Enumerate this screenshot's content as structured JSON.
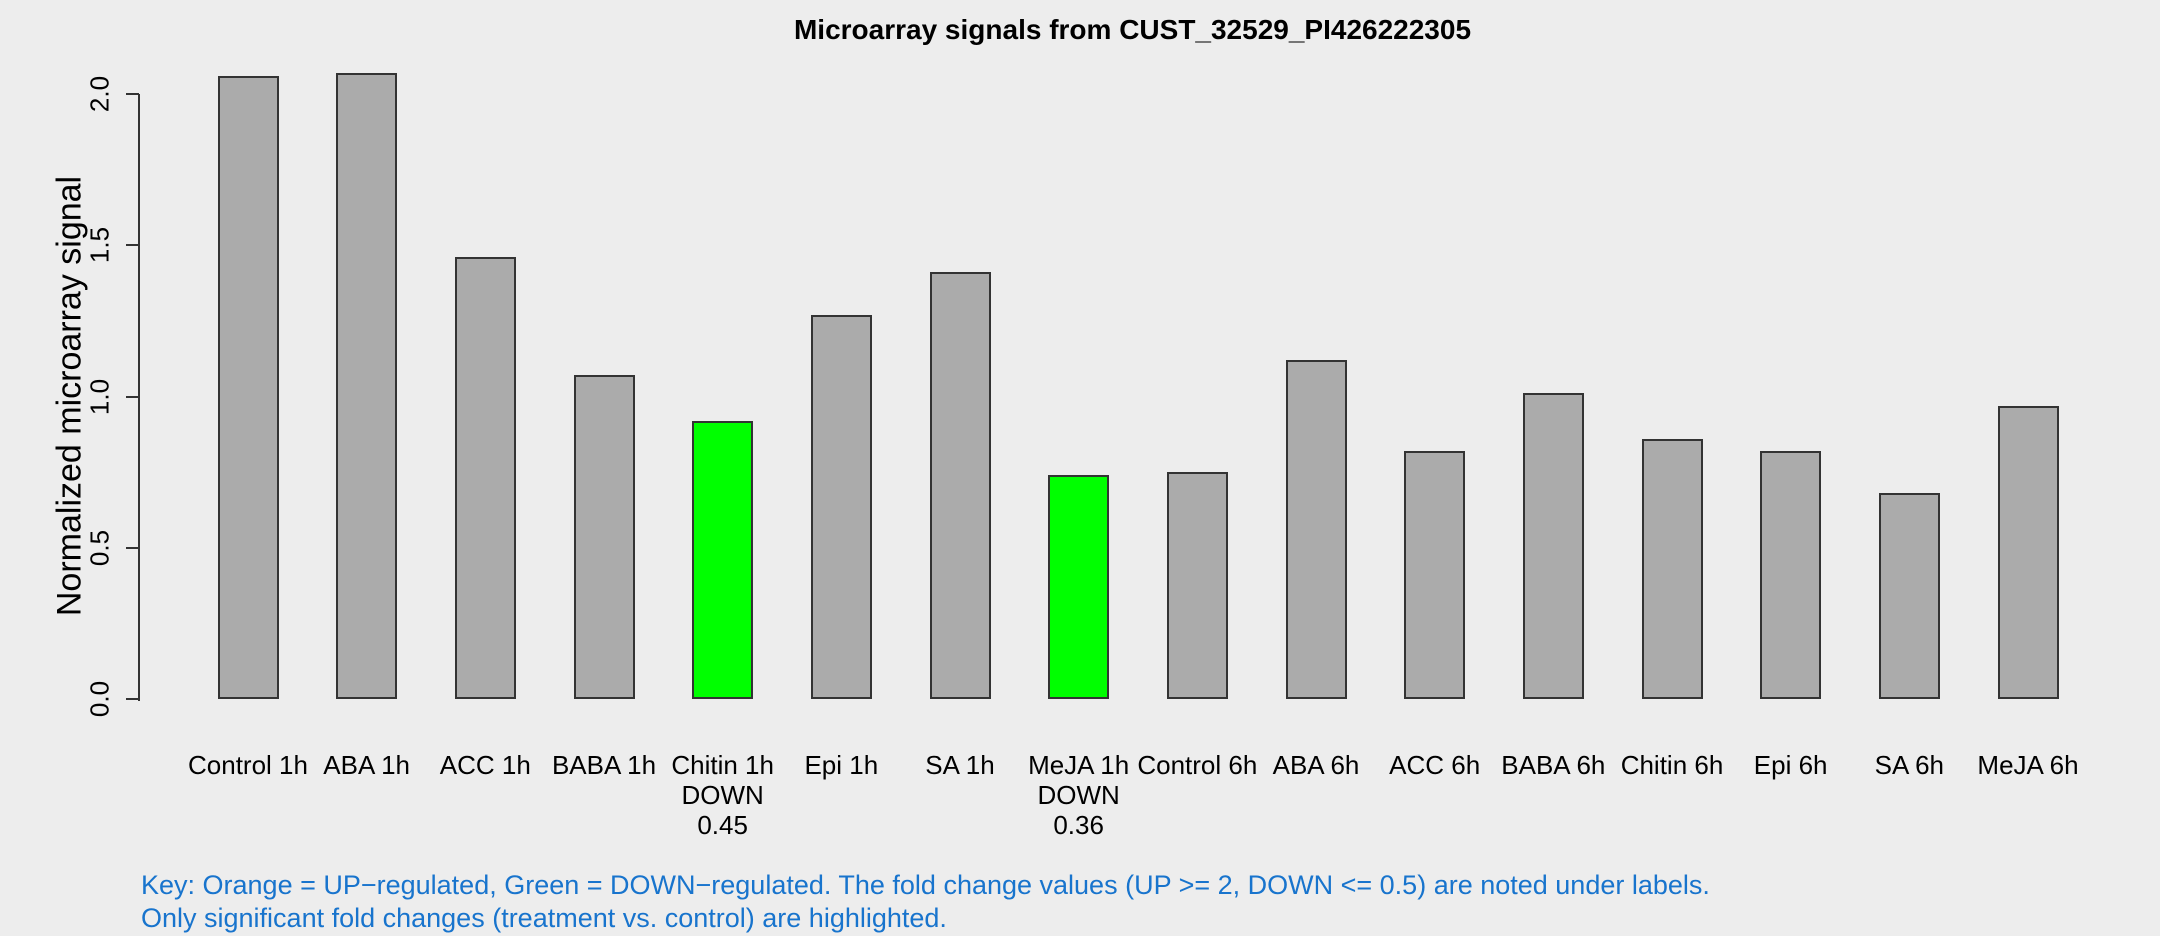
{
  "title": "Microarray signals from CUST_32529_PI426222305",
  "y_axis": {
    "label": "Normalized microarray signal",
    "ticks": [
      "0.0",
      "0.5",
      "1.0",
      "1.5",
      "2.0"
    ]
  },
  "key": {
    "line1": "Key: Orange = UP−regulated, Green = DOWN−regulated. The fold change values (UP >= 2, DOWN <= 0.5) are noted under labels.",
    "line2": "Only significant fold changes (treatment vs. control) are highlighted."
  },
  "colors": {
    "background": "#EDEDED",
    "bar_gray": "#ABABAB",
    "bar_green_down": "#00FF00",
    "bar_border": "#333333",
    "key_text": "#1874CD",
    "title_text": "#000000"
  },
  "chart_data": {
    "type": "bar",
    "title": "Microarray signals from CUST_32529_PI426222305",
    "xlabel": "",
    "ylabel": "Normalized microarray signal",
    "ylim": [
      0,
      2.1
    ],
    "y_ticks": [
      0.0,
      0.5,
      1.0,
      1.5,
      2.0
    ],
    "grid": false,
    "legend_position": "none",
    "categories": [
      "Control 1h",
      "ABA 1h",
      "ACC 1h",
      "BABA 1h",
      "Chitin 1h",
      "Epi 1h",
      "SA 1h",
      "MeJA 1h",
      "Control 6h",
      "ABA 6h",
      "ACC 6h",
      "BABA 6h",
      "Chitin 6h",
      "Epi 6h",
      "SA 6h",
      "MeJA 6h"
    ],
    "bars": [
      {
        "label": "Control 1h",
        "value": 2.06,
        "color": "gray",
        "regulation": null,
        "fold_change": null
      },
      {
        "label": "ABA 1h",
        "value": 2.07,
        "color": "gray",
        "regulation": null,
        "fold_change": null
      },
      {
        "label": "ACC 1h",
        "value": 1.46,
        "color": "gray",
        "regulation": null,
        "fold_change": null
      },
      {
        "label": "BABA 1h",
        "value": 1.07,
        "color": "gray",
        "regulation": null,
        "fold_change": null
      },
      {
        "label": "Chitin 1h",
        "value": 0.92,
        "color": "green",
        "regulation": "DOWN",
        "fold_change": "0.45"
      },
      {
        "label": "Epi 1h",
        "value": 1.27,
        "color": "gray",
        "regulation": null,
        "fold_change": null
      },
      {
        "label": "SA 1h",
        "value": 1.41,
        "color": "gray",
        "regulation": null,
        "fold_change": null
      },
      {
        "label": "MeJA 1h",
        "value": 0.74,
        "color": "green",
        "regulation": "DOWN",
        "fold_change": "0.36"
      },
      {
        "label": "Control 6h",
        "value": 0.75,
        "color": "gray",
        "regulation": null,
        "fold_change": null
      },
      {
        "label": "ABA 6h",
        "value": 1.12,
        "color": "gray",
        "regulation": null,
        "fold_change": null
      },
      {
        "label": "ACC 6h",
        "value": 0.82,
        "color": "gray",
        "regulation": null,
        "fold_change": null
      },
      {
        "label": "BABA 6h",
        "value": 1.01,
        "color": "gray",
        "regulation": null,
        "fold_change": null
      },
      {
        "label": "Chitin 6h",
        "value": 0.86,
        "color": "gray",
        "regulation": null,
        "fold_change": null
      },
      {
        "label": "Epi 6h",
        "value": 0.82,
        "color": "gray",
        "regulation": null,
        "fold_change": null
      },
      {
        "label": "SA 6h",
        "value": 0.68,
        "color": "gray",
        "regulation": null,
        "fold_change": null
      },
      {
        "label": "MeJA 6h",
        "value": 0.97,
        "color": "gray",
        "regulation": null,
        "fold_change": null
      }
    ]
  }
}
